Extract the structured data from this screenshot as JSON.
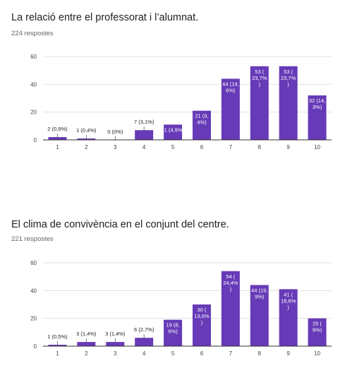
{
  "accent_color": "#673ab7",
  "chart_data": [
    {
      "type": "bar",
      "title": "La relació entre el professorat i l’alumnat.",
      "subtitle": "224 respostes",
      "categories": [
        "1",
        "2",
        "3",
        "4",
        "5",
        "6",
        "7",
        "8",
        "9",
        "10"
      ],
      "values": [
        2,
        1,
        0,
        7,
        11,
        21,
        44,
        53,
        53,
        32
      ],
      "data_labels": [
        [
          "2 (0,9%)"
        ],
        [
          "1 (0,4%)"
        ],
        [
          "0 (0%)"
        ],
        [
          "7 (3,1%)"
        ],
        [
          "11 (4,9%)"
        ],
        [
          "21 (9,",
          "4%)"
        ],
        [
          "44 (19,",
          "6%)"
        ],
        [
          "53 (",
          "23,7%",
          ")"
        ],
        [
          "53 (",
          "23,7%",
          ")"
        ],
        [
          "32 (14,",
          "3%)"
        ]
      ],
      "ylim": [
        0,
        60
      ],
      "yticks": [
        "0",
        "20",
        "40",
        "60"
      ],
      "grid": true,
      "legend": "none"
    },
    {
      "type": "bar",
      "title": "El clima de convivència en el conjunt del centre.",
      "subtitle": "221 respostes",
      "categories": [
        "1",
        "2",
        "3",
        "4",
        "5",
        "6",
        "7",
        "8",
        "9",
        "10"
      ],
      "values": [
        1,
        3,
        3,
        6,
        19,
        30,
        54,
        44,
        41,
        20
      ],
      "data_labels": [
        [
          "1 (0,5%)"
        ],
        [
          "3 (1,4%)"
        ],
        [
          "3 (1,4%)"
        ],
        [
          "6 (2,7%)"
        ],
        [
          "19 (8,",
          "6%)"
        ],
        [
          "30 (",
          "13,6%",
          ")"
        ],
        [
          "54 (",
          "24,4%",
          ")"
        ],
        [
          "44 (19,",
          "9%)"
        ],
        [
          "41 (",
          "18,6%",
          ")"
        ],
        [
          "20 (",
          "9%)"
        ]
      ],
      "ylim": [
        0,
        60
      ],
      "yticks": [
        "0",
        "20",
        "40",
        "60"
      ],
      "grid": true,
      "legend": "none"
    }
  ]
}
